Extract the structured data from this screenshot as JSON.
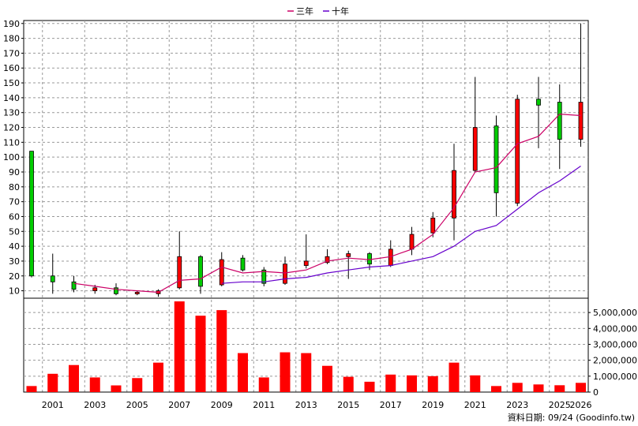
{
  "chart_data": {
    "type": "candlestick",
    "legend": {
      "placement": "top-center",
      "items": [
        {
          "name": "三年",
          "color": "#cc0066"
        },
        {
          "name": "十年",
          "color": "#6600cc"
        }
      ]
    },
    "x_labels": [
      "2001",
      "2003",
      "2005",
      "2007",
      "2009",
      "2011",
      "2013",
      "2015",
      "2017",
      "2019",
      "2021",
      "2023",
      "2025",
      "2026"
    ],
    "price_axis": {
      "range": [
        5,
        192
      ],
      "ticks": [
        10,
        20,
        30,
        40,
        50,
        60,
        70,
        80,
        90,
        100,
        110,
        120,
        130,
        140,
        150,
        160,
        170,
        180,
        190
      ]
    },
    "volume_axis": {
      "range": [
        0,
        5900000
      ],
      "ticks": [
        "0",
        "1,000,000",
        "2,000,000",
        "3,000,000",
        "4,000,000",
        "5,000,000"
      ]
    },
    "colors": {
      "up": "#ff0000",
      "down": "#00cc00",
      "volume": "#ff0000",
      "ma3": "#cc0066",
      "ma10": "#6600cc",
      "grid": "#999999"
    },
    "candles": [
      {
        "year": 2000,
        "open": 104,
        "close": 20,
        "high": 104,
        "low": 19
      },
      {
        "year": 2001,
        "open": 20,
        "close": 16,
        "high": 35,
        "low": 8
      },
      {
        "year": 2002,
        "open": 16,
        "close": 11,
        "high": 20,
        "low": 9
      },
      {
        "year": 2003,
        "open": 10,
        "close": 12,
        "high": 14,
        "low": 8
      },
      {
        "year": 2004,
        "open": 12,
        "close": 8,
        "high": 15,
        "low": 7
      },
      {
        "year": 2005,
        "open": 8,
        "close": 9,
        "high": 10,
        "low": 7
      },
      {
        "year": 2006,
        "open": 8,
        "close": 10,
        "high": 11,
        "low": 6
      },
      {
        "year": 2007,
        "open": 12,
        "close": 33,
        "high": 50,
        "low": 11
      },
      {
        "year": 2008,
        "open": 33,
        "close": 13,
        "high": 34,
        "low": 8
      },
      {
        "year": 2009,
        "open": 14,
        "close": 31,
        "high": 36,
        "low": 13
      },
      {
        "year": 2010,
        "open": 32,
        "close": 24,
        "high": 34,
        "low": 23
      },
      {
        "year": 2011,
        "open": 24,
        "close": 15,
        "high": 26,
        "low": 13
      },
      {
        "year": 2012,
        "open": 15,
        "close": 28,
        "high": 33,
        "low": 14
      },
      {
        "year": 2013,
        "open": 27,
        "close": 30,
        "high": 48,
        "low": 25
      },
      {
        "year": 2014,
        "open": 29,
        "close": 33,
        "high": 38,
        "low": 28
      },
      {
        "year": 2015,
        "open": 33,
        "close": 35,
        "high": 37,
        "low": 18
      },
      {
        "year": 2016,
        "open": 35,
        "close": 28,
        "high": 36,
        "low": 24
      },
      {
        "year": 2017,
        "open": 27,
        "close": 38,
        "high": 44,
        "low": 26
      },
      {
        "year": 2018,
        "open": 38,
        "close": 48,
        "high": 53,
        "low": 34
      },
      {
        "year": 2019,
        "open": 49,
        "close": 59,
        "high": 63,
        "low": 46
      },
      {
        "year": 2020,
        "open": 59,
        "close": 91,
        "high": 109,
        "low": 44
      },
      {
        "year": 2021,
        "open": 91,
        "close": 120,
        "high": 154,
        "low": 90
      },
      {
        "year": 2022,
        "open": 121,
        "close": 76,
        "high": 128,
        "low": 60
      },
      {
        "year": 2023,
        "open": 69,
        "close": 139,
        "high": 142,
        "low": 67
      },
      {
        "year": 2024,
        "open": 139,
        "close": 135,
        "high": 154,
        "low": 106
      },
      {
        "year": 2025,
        "open": 137,
        "close": 112,
        "high": 149,
        "low": 92
      },
      {
        "year": 2026,
        "open": 112,
        "close": 137,
        "high": 190,
        "low": 107
      }
    ],
    "ma3": [
      {
        "year": 2002,
        "value": 15
      },
      {
        "year": 2003,
        "value": 13
      },
      {
        "year": 2004,
        "value": 11
      },
      {
        "year": 2005,
        "value": 10
      },
      {
        "year": 2006,
        "value": 9
      },
      {
        "year": 2007,
        "value": 17
      },
      {
        "year": 2008,
        "value": 18
      },
      {
        "year": 2009,
        "value": 26
      },
      {
        "year": 2010,
        "value": 22
      },
      {
        "year": 2011,
        "value": 23
      },
      {
        "year": 2012,
        "value": 22
      },
      {
        "year": 2013,
        "value": 24
      },
      {
        "year": 2014,
        "value": 30
      },
      {
        "year": 2015,
        "value": 32
      },
      {
        "year": 2016,
        "value": 31
      },
      {
        "year": 2017,
        "value": 33
      },
      {
        "year": 2018,
        "value": 38
      },
      {
        "year": 2019,
        "value": 48
      },
      {
        "year": 2020,
        "value": 66
      },
      {
        "year": 2021,
        "value": 90
      },
      {
        "year": 2022,
        "value": 93
      },
      {
        "year": 2023,
        "value": 109
      },
      {
        "year": 2024,
        "value": 114
      },
      {
        "year": 2025,
        "value": 129
      },
      {
        "year": 2026,
        "value": 128
      }
    ],
    "ma10": [
      {
        "year": 2009,
        "value": 15
      },
      {
        "year": 2010,
        "value": 16
      },
      {
        "year": 2011,
        "value": 16
      },
      {
        "year": 2012,
        "value": 18
      },
      {
        "year": 2013,
        "value": 19
      },
      {
        "year": 2014,
        "value": 22
      },
      {
        "year": 2015,
        "value": 24
      },
      {
        "year": 2016,
        "value": 26
      },
      {
        "year": 2017,
        "value": 27
      },
      {
        "year": 2018,
        "value": 30
      },
      {
        "year": 2019,
        "value": 33
      },
      {
        "year": 2020,
        "value": 40
      },
      {
        "year": 2021,
        "value": 50
      },
      {
        "year": 2022,
        "value": 54
      },
      {
        "year": 2023,
        "value": 65
      },
      {
        "year": 2024,
        "value": 76
      },
      {
        "year": 2025,
        "value": 84
      },
      {
        "year": 2026,
        "value": 94
      }
    ],
    "volume": [
      {
        "year": 2000,
        "value": 380000
      },
      {
        "year": 2001,
        "value": 1150000
      },
      {
        "year": 2002,
        "value": 1700000
      },
      {
        "year": 2003,
        "value": 920000
      },
      {
        "year": 2004,
        "value": 420000
      },
      {
        "year": 2005,
        "value": 880000
      },
      {
        "year": 2006,
        "value": 1850000
      },
      {
        "year": 2007,
        "value": 5700000
      },
      {
        "year": 2008,
        "value": 4800000
      },
      {
        "year": 2009,
        "value": 5150000
      },
      {
        "year": 2010,
        "value": 2450000
      },
      {
        "year": 2011,
        "value": 920000
      },
      {
        "year": 2012,
        "value": 2500000
      },
      {
        "year": 2013,
        "value": 2450000
      },
      {
        "year": 2014,
        "value": 1650000
      },
      {
        "year": 2015,
        "value": 960000
      },
      {
        "year": 2016,
        "value": 650000
      },
      {
        "year": 2017,
        "value": 1100000
      },
      {
        "year": 2018,
        "value": 1050000
      },
      {
        "year": 2019,
        "value": 1000000
      },
      {
        "year": 2020,
        "value": 1850000
      },
      {
        "year": 2021,
        "value": 1050000
      },
      {
        "year": 2022,
        "value": 380000
      },
      {
        "year": 2023,
        "value": 580000
      },
      {
        "year": 2024,
        "value": 480000
      },
      {
        "year": 2025,
        "value": 430000
      },
      {
        "year": 2026,
        "value": 580000
      }
    ],
    "source_note": "資料日期: 09/24  (Goodinfo.tw)"
  }
}
